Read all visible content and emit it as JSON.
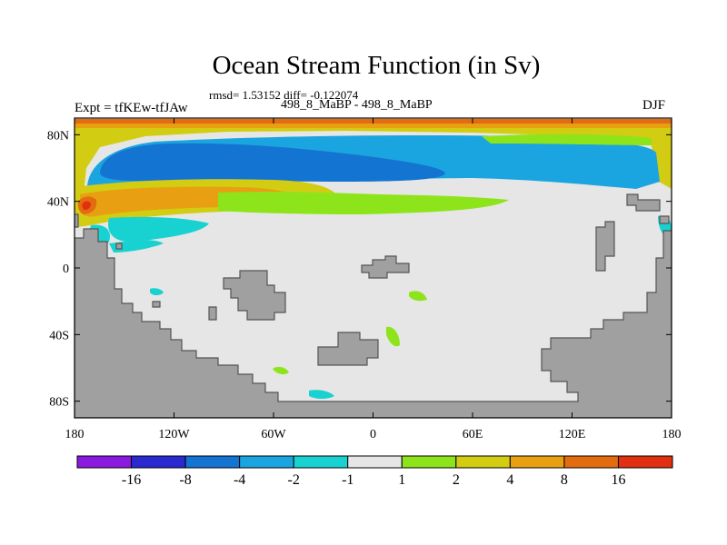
{
  "chart_data": {
    "type": "heatmap",
    "title": "Ocean Stream Function (in Sv)",
    "stats_line": "rmsd= 1.53152 diff= -0.122074",
    "subtitle": "498_8_MaBP - 498_8_MaBP",
    "left_label": "Expt = tfKEw-tfJAw",
    "right_label": "DJF",
    "x_ticks": [
      {
        "value": -180,
        "label": "180"
      },
      {
        "value": -120,
        "label": "120W"
      },
      {
        "value": -60,
        "label": "60W"
      },
      {
        "value": 0,
        "label": "0"
      },
      {
        "value": 60,
        "label": "60E"
      },
      {
        "value": 120,
        "label": "120E"
      },
      {
        "value": 180,
        "label": "180"
      }
    ],
    "y_ticks": [
      {
        "value": 80,
        "label": "80N"
      },
      {
        "value": 40,
        "label": "40N"
      },
      {
        "value": 0,
        "label": "0"
      },
      {
        "value": -40,
        "label": "40S"
      },
      {
        "value": -80,
        "label": "80S"
      }
    ],
    "xlim": [
      -180,
      180
    ],
    "ylim": [
      -90,
      90
    ],
    "land_color": "#a0a0a0",
    "ocean_neutral_color": "#e6e6e6",
    "colorbar": {
      "boundaries": [
        "-16",
        "-8",
        "-4",
        "-2",
        "-1",
        "1",
        "2",
        "4",
        "8",
        "16"
      ],
      "colors": [
        "#8a1ae0",
        "#2a2ad0",
        "#1474d2",
        "#1ba5e0",
        "#18d2d2",
        "#e6e6e6",
        "#8ee41a",
        "#d2cc12",
        "#e8a012",
        "#e46c10",
        "#e03010"
      ]
    },
    "regions": [
      {
        "level": "8 to 16",
        "color": "#e46c10",
        "lon_range": [
          -180,
          180
        ],
        "lat_range": [
          83,
          86
        ]
      },
      {
        "level": "4 to 8",
        "color": "#e8a012",
        "lon_range": [
          -160,
          -150
        ],
        "lat_range": [
          32,
          40
        ]
      },
      {
        "level": "-8 to -4",
        "color": "#1474d2",
        "lon_range": [
          -160,
          -60
        ],
        "lat_range": [
          52,
          76
        ]
      },
      {
        "level": "-4 to -2",
        "color": "#1ba5e0",
        "lon_range": [
          -170,
          160
        ],
        "lat_range": [
          45,
          80
        ]
      },
      {
        "level": "4 to 8",
        "color": "#e8a012",
        "lon_range": [
          -175,
          -80
        ],
        "lat_range": [
          33,
          48
        ]
      },
      {
        "level": "2 to 4",
        "color": "#d2cc12",
        "lon_range": [
          -180,
          -20
        ],
        "lat_range": [
          28,
          52
        ]
      },
      {
        "level": "1 to 2",
        "color": "#8ee41a",
        "lon_range": [
          -180,
          180
        ],
        "lat_range": [
          25,
          80
        ]
      },
      {
        "level": "-2 to -1",
        "color": "#18d2d2",
        "lon_range": [
          -170,
          -110
        ],
        "lat_range": [
          5,
          25
        ]
      }
    ]
  }
}
